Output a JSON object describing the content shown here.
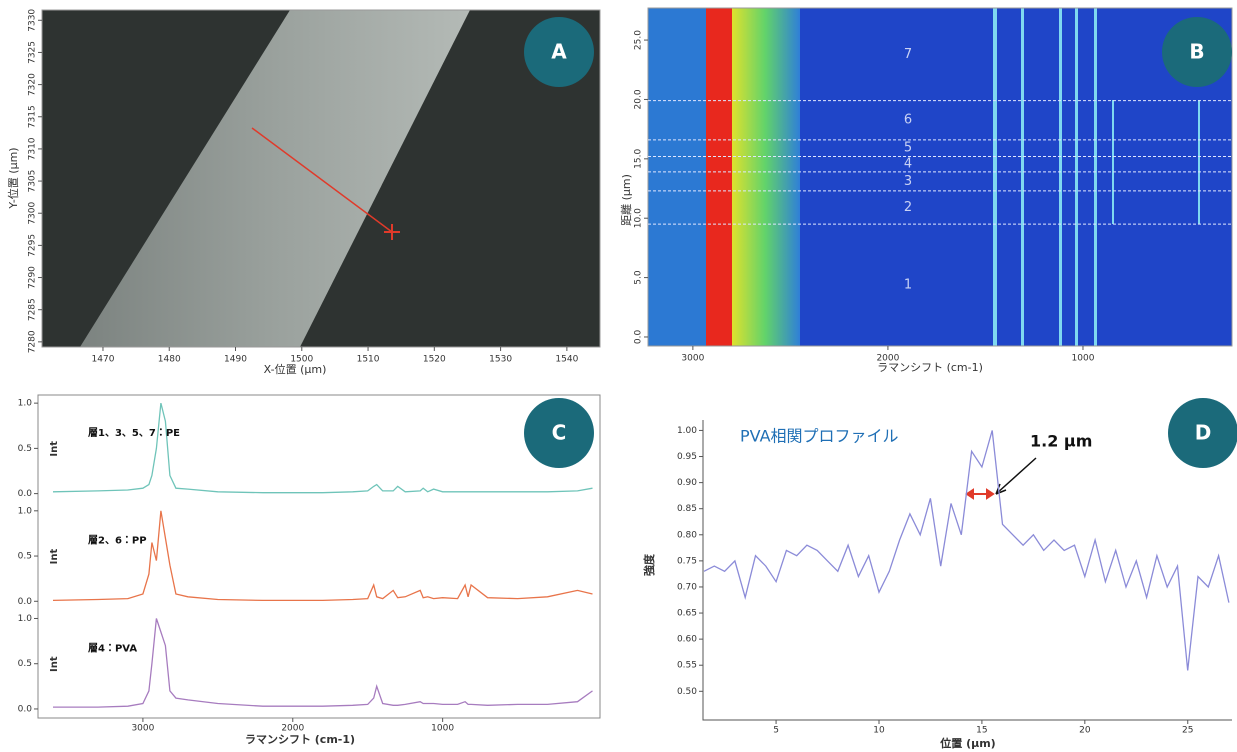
{
  "chart_data": [
    {
      "type": "image",
      "panel": "A",
      "xlabel": "X-位置 (μm)",
      "ylabel": "Y-位置 (μm)",
      "xlim": [
        1460.8,
        1545
      ],
      "xticks": [
        1470,
        1480,
        1490,
        1500,
        1510,
        1520,
        1530,
        1540
      ],
      "ylim": [
        7279.2,
        7331.6
      ],
      "yticks": [
        7280,
        7285,
        7290,
        7295,
        7300,
        7305,
        7310,
        7315,
        7320,
        7325,
        7330
      ]
    },
    {
      "type": "heatmap",
      "panel": "B",
      "xlabel": "ラマンシフト (cm-1)",
      "ylabel": "距離 (μm)",
      "xlim": [
        3230,
        236
      ],
      "xticks": [
        3000,
        2000,
        1000
      ],
      "ylim": [
        -0.76,
        27.7
      ],
      "yticks": [
        {
          "value": 0,
          "label": "0.0"
        },
        {
          "value": 5,
          "label": "5.0"
        },
        {
          "value": 10,
          "label": "10.0"
        },
        {
          "value": 15,
          "label": "15.0"
        },
        {
          "value": 20,
          "label": "20.0"
        },
        {
          "value": 25,
          "label": "25.0"
        }
      ],
      "boundaries": [
        9.5,
        12.3,
        13.9,
        15.2,
        16.6,
        19.9
      ],
      "layers": [
        "1",
        "2",
        "3",
        "4",
        "5",
        "6",
        "7"
      ]
    },
    {
      "type": "multi-panel-line",
      "panel": "C",
      "xlabel": "ラマンシフト (cm-1)",
      "ylabel": "Int",
      "xlim": [
        3700,
        -50
      ],
      "xticks": [
        3000,
        2000,
        1000
      ],
      "ylim": [
        -0.1,
        1.09
      ],
      "yticks": [
        {
          "value": 0,
          "label": "0.0"
        },
        {
          "value": 0.5,
          "label": "0.5"
        },
        {
          "value": 1,
          "label": "1.0"
        }
      ],
      "x": [
        3600,
        3300,
        3100,
        3000,
        2960,
        2940,
        2910,
        2880,
        2850,
        2820,
        2780,
        2700,
        2500,
        2200,
        1800,
        1600,
        1500,
        1460,
        1440,
        1400,
        1330,
        1300,
        1250,
        1150,
        1130,
        1100,
        1060,
        1000,
        900,
        850,
        830,
        810,
        700,
        500,
        300,
        100,
        0
      ],
      "series": [
        {
          "name": "層1、3、5、7：PE",
          "color": "#6fc4b9",
          "values": [
            0.02,
            0.03,
            0.04,
            0.06,
            0.1,
            0.2,
            0.5,
            1.0,
            0.8,
            0.2,
            0.06,
            0.05,
            0.02,
            0.01,
            0.01,
            0.02,
            0.03,
            0.08,
            0.1,
            0.03,
            0.03,
            0.08,
            0.02,
            0.03,
            0.06,
            0.02,
            0.05,
            0.02,
            0.02,
            0.02,
            0.02,
            0.02,
            0.02,
            0.02,
            0.02,
            0.03,
            0.06
          ]
        },
        {
          "name": "層2、6：PP",
          "color": "#e8744a",
          "values": [
            0.01,
            0.02,
            0.03,
            0.08,
            0.3,
            0.65,
            0.45,
            1.0,
            0.7,
            0.4,
            0.08,
            0.05,
            0.02,
            0.01,
            0.01,
            0.02,
            0.03,
            0.18,
            0.05,
            0.03,
            0.12,
            0.04,
            0.05,
            0.12,
            0.04,
            0.05,
            0.03,
            0.04,
            0.03,
            0.18,
            0.05,
            0.18,
            0.04,
            0.03,
            0.05,
            0.12,
            0.08
          ]
        },
        {
          "name": "層4：PVA",
          "color": "#a77cbf",
          "values": [
            0.02,
            0.02,
            0.03,
            0.06,
            0.2,
            0.5,
            1.0,
            0.85,
            0.7,
            0.2,
            0.12,
            0.1,
            0.06,
            0.03,
            0.03,
            0.04,
            0.05,
            0.12,
            0.25,
            0.06,
            0.04,
            0.04,
            0.05,
            0.08,
            0.06,
            0.06,
            0.06,
            0.05,
            0.05,
            0.08,
            0.05,
            0.05,
            0.04,
            0.05,
            0.05,
            0.08,
            0.2
          ]
        }
      ]
    },
    {
      "type": "line",
      "panel": "D",
      "title": "PVA相関プロファイル",
      "annotation": "1.2 μm",
      "xlabel": "位置 (μm)",
      "ylabel": "強度",
      "color": "#8b8bd8",
      "xlim": [
        1.45,
        27.15
      ],
      "xticks": [
        5,
        10,
        15,
        20,
        25
      ],
      "ylim": [
        0.445,
        1.02
      ],
      "yticks": [
        {
          "value": 0.5,
          "label": "0.50"
        },
        {
          "value": 0.55,
          "label": "0.55"
        },
        {
          "value": 0.6,
          "label": "0.60"
        },
        {
          "value": 0.65,
          "label": "0.65"
        },
        {
          "value": 0.7,
          "label": "0.70"
        },
        {
          "value": 0.75,
          "label": "0.75"
        },
        {
          "value": 0.8,
          "label": "0.80"
        },
        {
          "value": 0.85,
          "label": "0.85"
        },
        {
          "value": 0.9,
          "label": "0.90"
        },
        {
          "value": 0.95,
          "label": "0.95"
        },
        {
          "value": 1,
          "label": "1.00"
        }
      ],
      "x": [
        1.5,
        2,
        2.5,
        3,
        3.5,
        4,
        4.5,
        5,
        5.5,
        6,
        6.5,
        7,
        7.5,
        8,
        8.5,
        9,
        9.5,
        10,
        10.5,
        11,
        11.5,
        12,
        12.5,
        13,
        13.5,
        14,
        14.5,
        15,
        15.5,
        16,
        16.5,
        17,
        17.5,
        18,
        18.5,
        19,
        19.5,
        20,
        20.5,
        21,
        21.5,
        22,
        22.5,
        23,
        23.5,
        24,
        24.5,
        25,
        25.5,
        26,
        26.5,
        27
      ],
      "values": [
        0.73,
        0.74,
        0.73,
        0.75,
        0.68,
        0.76,
        0.74,
        0.71,
        0.77,
        0.76,
        0.78,
        0.77,
        0.75,
        0.73,
        0.78,
        0.72,
        0.76,
        0.69,
        0.73,
        0.79,
        0.84,
        0.8,
        0.87,
        0.74,
        0.86,
        0.8,
        0.96,
        0.93,
        1.0,
        0.82,
        0.8,
        0.78,
        0.8,
        0.77,
        0.79,
        0.77,
        0.78,
        0.72,
        0.79,
        0.71,
        0.77,
        0.7,
        0.75,
        0.68,
        0.76,
        0.7,
        0.74,
        0.54,
        0.72,
        0.7,
        0.76,
        0.67
      ]
    }
  ]
}
